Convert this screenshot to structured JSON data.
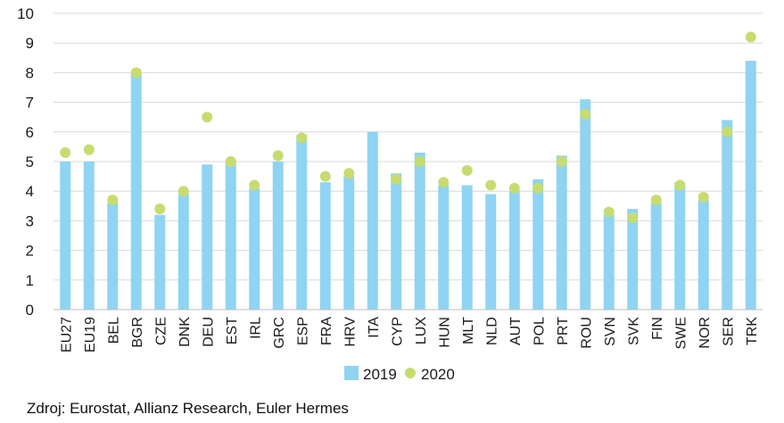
{
  "chart_data": {
    "type": "bar",
    "categories": [
      "EU27",
      "EU19",
      "BEL",
      "BGR",
      "CZE",
      "DNK",
      "DEU",
      "EST",
      "IRL",
      "GRC",
      "ESP",
      "FRA",
      "HRV",
      "ITA",
      "CYP",
      "LUX",
      "HUN",
      "MLT",
      "NLD",
      "AUT",
      "POL",
      "PRT",
      "ROU",
      "SVN",
      "SVK",
      "FIN",
      "SWE",
      "NOR",
      "SER",
      "TRK"
    ],
    "series": [
      {
        "name": "2019",
        "mark": "bar",
        "color": "#8fd4f2",
        "values": [
          5.0,
          5.0,
          3.6,
          8.0,
          3.2,
          3.9,
          4.9,
          5.0,
          4.1,
          5.0,
          5.9,
          4.3,
          4.5,
          6.0,
          4.6,
          5.3,
          4.2,
          4.2,
          3.9,
          4.0,
          4.4,
          5.2,
          7.1,
          3.2,
          3.4,
          3.6,
          4.3,
          3.7,
          6.4,
          8.4
        ]
      },
      {
        "name": "2020",
        "mark": "dot",
        "color": "#c7dc6f",
        "values": [
          5.3,
          5.4,
          3.7,
          8.0,
          3.4,
          4.0,
          6.5,
          5.0,
          4.2,
          5.2,
          5.8,
          4.5,
          4.6,
          null,
          4.4,
          5.0,
          4.3,
          4.7,
          4.2,
          4.1,
          4.1,
          5.0,
          6.6,
          3.3,
          3.1,
          3.7,
          4.2,
          3.8,
          6.0,
          9.2
        ]
      }
    ],
    "ylim": [
      0,
      10
    ],
    "yticks": [
      0,
      1,
      2,
      3,
      4,
      5,
      6,
      7,
      8,
      9,
      10
    ],
    "grid": true,
    "legend": "bottom-center"
  },
  "source": "Zdroj: Eurostat, Allianz Research, Euler Hermes"
}
